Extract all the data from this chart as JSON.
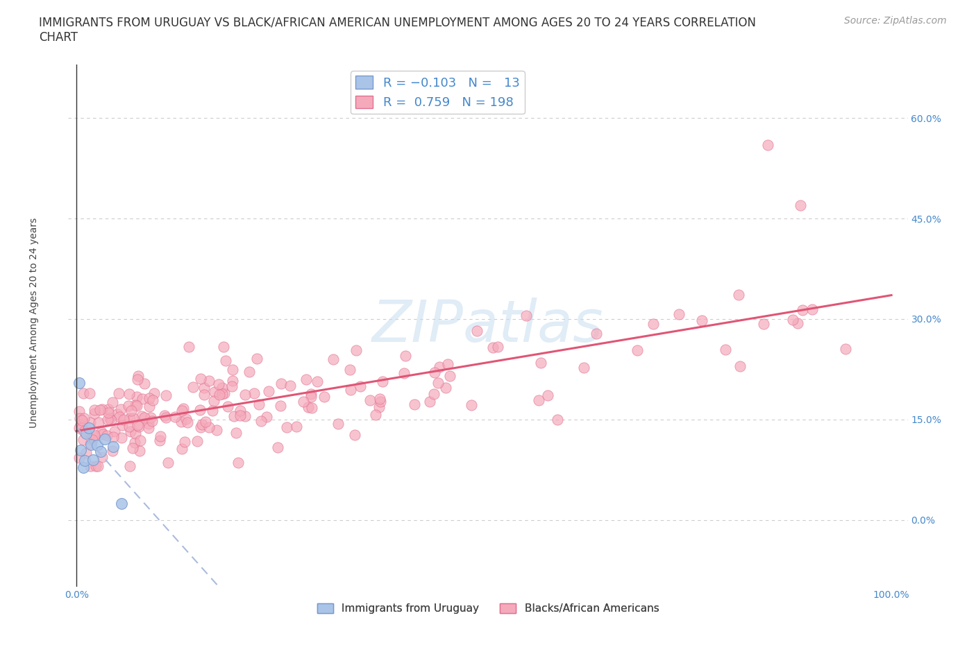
{
  "title_line1": "IMMIGRANTS FROM URUGUAY VS BLACK/AFRICAN AMERICAN UNEMPLOYMENT AMONG AGES 20 TO 24 YEARS CORRELATION",
  "title_line2": "CHART",
  "source_text": "Source: ZipAtlas.com",
  "watermark": "ZIPatlas",
  "ylabel": "Unemployment Among Ages 20 to 24 years",
  "series1_color": "#aac4e8",
  "series1_edge": "#7799cc",
  "series2_color": "#f5aabb",
  "series2_edge": "#e07090",
  "trendline1_color": "#aabbdd",
  "trendline2_color": "#e05575",
  "accent_color": "#4488cc",
  "background_color": "#ffffff",
  "grid_color": "#cccccc",
  "series1_R": -0.103,
  "series2_R": 0.759,
  "title_fontsize": 12,
  "axis_label_fontsize": 10,
  "tick_fontsize": 10,
  "legend_fontsize": 13,
  "watermark_fontsize": 60,
  "source_fontsize": 10
}
